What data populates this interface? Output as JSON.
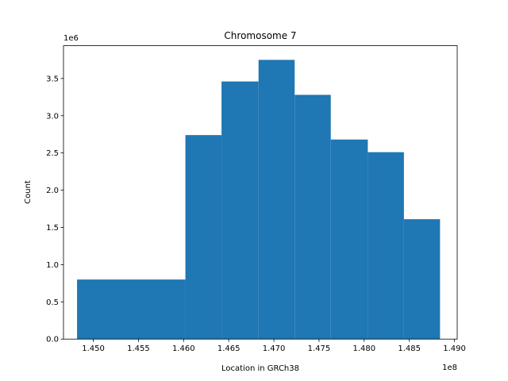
{
  "chart_data": {
    "type": "bar",
    "title": "Chromosome 7",
    "xlabel": "Location in GRCh38",
    "ylabel": "Count",
    "x_offset_label": "1e8",
    "y_offset_label": "1e6",
    "xlim": [
      1.4467,
      1.4903
    ],
    "ylim": [
      0,
      3.94
    ],
    "x_ticks": [
      1.45,
      1.455,
      1.46,
      1.465,
      1.47,
      1.475,
      1.48,
      1.485,
      1.49
    ],
    "x_tick_labels": [
      "1.450",
      "1.455",
      "1.460",
      "1.465",
      "1.470",
      "1.475",
      "1.480",
      "1.485",
      "1.490"
    ],
    "y_ticks": [
      0,
      0.5,
      1.0,
      1.5,
      2.0,
      2.5,
      3.0,
      3.5
    ],
    "y_tick_labels": [
      "0.0",
      "0.5",
      "1.0",
      "1.5",
      "2.0",
      "2.5",
      "3.0",
      "3.5"
    ],
    "bin_edges": [
      1.4482,
      1.4602,
      1.4642,
      1.4683,
      1.4723,
      1.4763,
      1.4804,
      1.4844,
      1.4884
    ],
    "values": [
      0.8,
      2.74,
      3.46,
      3.75,
      3.28,
      2.68,
      2.51,
      1.61
    ],
    "bar_color": "#1f77b4",
    "grid": false,
    "legend": "none"
  }
}
